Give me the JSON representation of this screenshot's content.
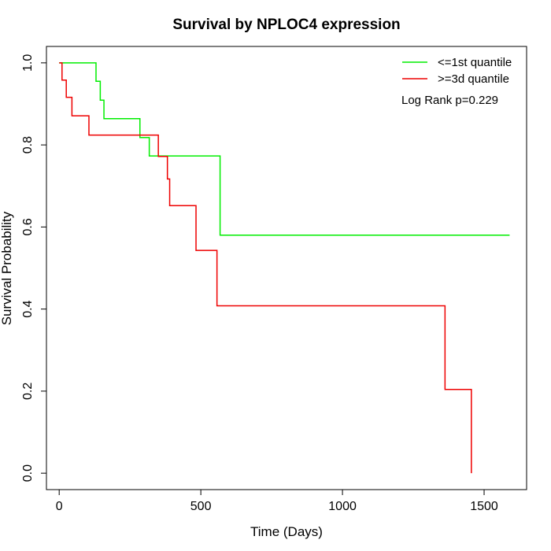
{
  "chart_data": {
    "type": "line",
    "title": "Survival by NPLOC4 expression",
    "xlabel": "Time (Days)",
    "ylabel": "Survival Probability",
    "xlim": [
      -45,
      1650
    ],
    "ylim": [
      -0.04,
      1.04
    ],
    "x_ticks": [
      0,
      500,
      1000,
      1500
    ],
    "y_ticks": [
      0.0,
      0.2,
      0.4,
      0.6,
      0.8,
      1.0
    ],
    "x_tick_labels": [
      "0",
      "500",
      "1000",
      "1500"
    ],
    "y_tick_labels": [
      "0.0",
      "0.2",
      "0.4",
      "0.6",
      "0.8",
      "1.0"
    ],
    "grid": false,
    "legend_position": "top-right",
    "annotation": "Log Rank p=0.229",
    "series": [
      {
        "name": "<=1st quantile",
        "color": "#00ee00",
        "steps": [
          {
            "x": 0,
            "y": 1.0
          },
          {
            "x": 130,
            "y": 0.955
          },
          {
            "x": 145,
            "y": 0.909
          },
          {
            "x": 158,
            "y": 0.864
          },
          {
            "x": 285,
            "y": 0.818
          },
          {
            "x": 318,
            "y": 0.773
          },
          {
            "x": 568,
            "y": 0.58
          },
          {
            "x": 1590,
            "y": 0.58
          }
        ]
      },
      {
        "name": ">=3d quantile",
        "color": "#ee0000",
        "steps": [
          {
            "x": 0,
            "y": 1.0
          },
          {
            "x": 10,
            "y": 0.958
          },
          {
            "x": 25,
            "y": 0.916
          },
          {
            "x": 45,
            "y": 0.871
          },
          {
            "x": 105,
            "y": 0.824
          },
          {
            "x": 350,
            "y": 0.772
          },
          {
            "x": 382,
            "y": 0.717
          },
          {
            "x": 390,
            "y": 0.652
          },
          {
            "x": 483,
            "y": 0.543
          },
          {
            "x": 557,
            "y": 0.408
          },
          {
            "x": 1362,
            "y": 0.204
          },
          {
            "x": 1455,
            "y": 0.0
          }
        ]
      }
    ]
  }
}
